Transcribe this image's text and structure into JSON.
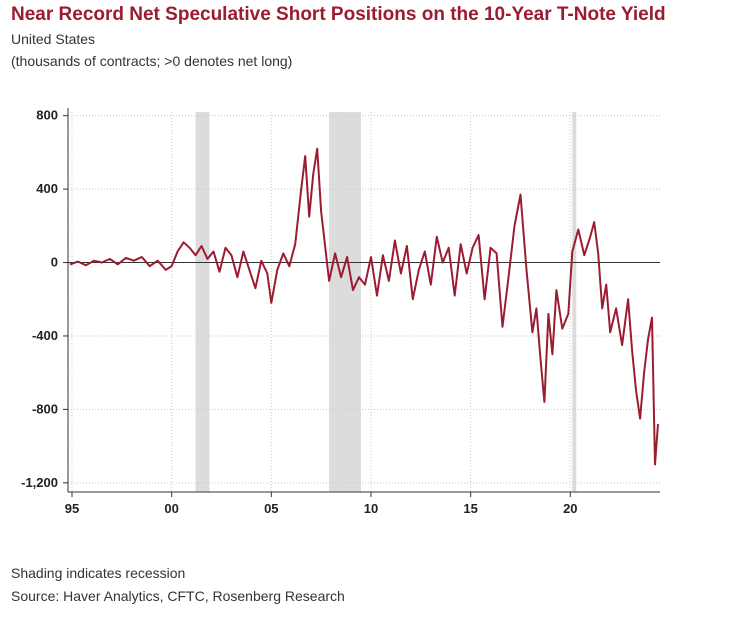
{
  "header": {
    "title": "Near Record Net Speculative Short Positions on the 10-Year T-Note Yield",
    "subtitle": "United States",
    "units": "(thousands of contracts; >0 denotes net long)"
  },
  "footer": {
    "note": "Shading indicates recession",
    "source": "Source: Haver Analytics, CFTC, Rosenberg Research"
  },
  "chart_data": {
    "type": "line",
    "title": "Near Record Net Speculative Short Positions on the 10-Year T-Note Yield",
    "xlabel": "",
    "ylabel": "",
    "xlim": [
      1994.8,
      2024.5
    ],
    "ylim": [
      -1250,
      820
    ],
    "x_ticks": [
      {
        "value": 1995,
        "label": "95"
      },
      {
        "value": 2000,
        "label": "00"
      },
      {
        "value": 2005,
        "label": "05"
      },
      {
        "value": 2010,
        "label": "10"
      },
      {
        "value": 2015,
        "label": "15"
      },
      {
        "value": 2020,
        "label": "20"
      }
    ],
    "y_ticks": [
      {
        "value": 800,
        "label": "800"
      },
      {
        "value": 400,
        "label": "400"
      },
      {
        "value": 0,
        "label": "0"
      },
      {
        "value": -400,
        "label": "-400"
      },
      {
        "value": -800,
        "label": "-800"
      },
      {
        "value": -1200,
        "label": "-1,200"
      }
    ],
    "grid": true,
    "zero_line": true,
    "recessions": [
      [
        2001.2,
        2001.9
      ],
      [
        2007.9,
        2009.5
      ],
      [
        2020.1,
        2020.3
      ]
    ],
    "series": [
      {
        "color": "#9b1c31",
        "x": [
          1994.9,
          1995.3,
          1995.7,
          1996.1,
          1996.5,
          1996.9,
          1997.3,
          1997.7,
          1998.1,
          1998.5,
          1998.9,
          1999.3,
          1999.7,
          2000.0,
          2000.3,
          2000.6,
          2000.9,
          2001.2,
          2001.5,
          2001.8,
          2002.1,
          2002.4,
          2002.7,
          2003.0,
          2003.3,
          2003.6,
          2003.9,
          2004.2,
          2004.5,
          2004.8,
          2005.0,
          2005.3,
          2005.6,
          2005.9,
          2006.2,
          2006.5,
          2006.7,
          2006.9,
          2007.1,
          2007.3,
          2007.5,
          2007.7,
          2007.9,
          2008.2,
          2008.5,
          2008.8,
          2009.1,
          2009.4,
          2009.7,
          2010.0,
          2010.3,
          2010.6,
          2010.9,
          2011.2,
          2011.5,
          2011.8,
          2012.1,
          2012.4,
          2012.7,
          2013.0,
          2013.3,
          2013.6,
          2013.9,
          2014.2,
          2014.5,
          2014.8,
          2015.1,
          2015.4,
          2015.7,
          2016.0,
          2016.3,
          2016.6,
          2016.9,
          2017.2,
          2017.5,
          2017.8,
          2018.1,
          2018.3,
          2018.5,
          2018.7,
          2018.9,
          2019.1,
          2019.3,
          2019.6,
          2019.9,
          2020.1,
          2020.4,
          2020.7,
          2021.0,
          2021.2,
          2021.4,
          2021.6,
          2021.8,
          2022.0,
          2022.3,
          2022.6,
          2022.9,
          2023.1,
          2023.3,
          2023.5,
          2023.7,
          2023.9,
          2024.1,
          2024.25,
          2024.4
        ],
        "values": [
          -10,
          5,
          -15,
          10,
          0,
          20,
          -10,
          25,
          10,
          30,
          -20,
          10,
          -40,
          -20,
          60,
          110,
          80,
          40,
          90,
          20,
          60,
          -50,
          80,
          40,
          -80,
          60,
          -40,
          -140,
          10,
          -60,
          -220,
          -40,
          50,
          -20,
          100,
          400,
          580,
          250,
          480,
          620,
          280,
          90,
          -100,
          50,
          -80,
          30,
          -150,
          -80,
          -120,
          30,
          -180,
          40,
          -100,
          120,
          -60,
          90,
          -200,
          -40,
          60,
          -120,
          140,
          0,
          80,
          -180,
          100,
          -60,
          80,
          150,
          -200,
          80,
          50,
          -350,
          -80,
          200,
          370,
          -40,
          -380,
          -250,
          -520,
          -760,
          -280,
          -500,
          -150,
          -360,
          -280,
          60,
          180,
          40,
          140,
          220,
          50,
          -250,
          -120,
          -380,
          -250,
          -450,
          -200,
          -480,
          -700,
          -850,
          -600,
          -420,
          -300,
          -1100,
          -880
        ]
      }
    ]
  }
}
